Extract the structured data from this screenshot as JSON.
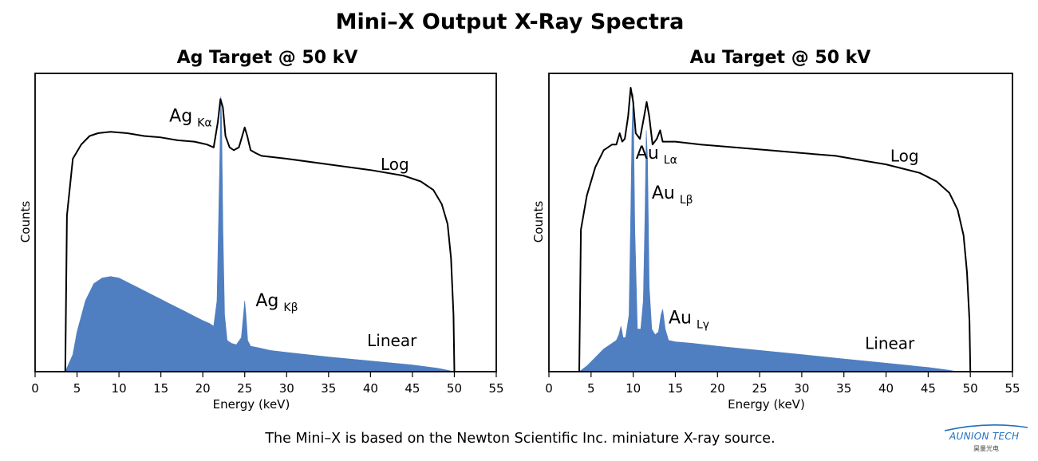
{
  "title": "Mini–X Output X-Ray Spectra",
  "caption": "The Mini–X is based on the Newton Scientific Inc. miniature X-ray source.",
  "logo": {
    "text": "AUNION TECH",
    "subtext": "昊量光电"
  },
  "colors": {
    "linear_fill": "#4f7fc1",
    "log_line": "#000000",
    "logo": "#1f6fbf"
  },
  "chart_data": [
    {
      "type": "area",
      "title": "Ag Target @ 50 kV",
      "xlabel": "Energy (keV)",
      "ylabel": "Counts",
      "xlim": [
        0,
        55
      ],
      "xticks": [
        0,
        5,
        10,
        15,
        20,
        25,
        30,
        35,
        40,
        45,
        50,
        55
      ],
      "grid": false,
      "series": [
        {
          "name": "Log",
          "style": "line",
          "x": [
            3.6,
            3.8,
            4.5,
            5.5,
            6.5,
            7.5,
            9,
            11,
            13,
            15,
            17,
            19,
            20.5,
            21.3,
            21.8,
            22.1,
            22.4,
            22.7,
            23.2,
            23.7,
            24.3,
            24.7,
            25.0,
            25.3,
            25.7,
            26.3,
            27,
            30,
            35,
            40,
            44,
            46,
            47.5,
            48.5,
            49.2,
            49.6,
            49.9,
            50.0
          ],
          "y": [
            0.0,
            0.55,
            0.75,
            0.8,
            0.83,
            0.84,
            0.845,
            0.84,
            0.83,
            0.825,
            0.815,
            0.81,
            0.8,
            0.79,
            0.88,
            0.96,
            0.93,
            0.83,
            0.79,
            0.78,
            0.79,
            0.83,
            0.86,
            0.83,
            0.78,
            0.77,
            0.76,
            0.75,
            0.73,
            0.71,
            0.69,
            0.67,
            0.64,
            0.59,
            0.52,
            0.4,
            0.2,
            0.0
          ]
        },
        {
          "name": "Linear",
          "style": "area",
          "x": [
            3.6,
            4.5,
            5.0,
            6.0,
            7.0,
            8.0,
            9.0,
            10.0,
            11.0,
            12.0,
            13.0,
            14.0,
            15.0,
            16.0,
            17.0,
            18.0,
            19.0,
            20.0,
            20.8,
            21.3,
            21.7,
            21.9,
            22.05,
            22.15,
            22.25,
            22.4,
            22.6,
            22.9,
            23.4,
            24.0,
            24.6,
            24.85,
            25.0,
            25.15,
            25.35,
            25.7,
            26.5,
            28,
            30,
            35,
            40,
            45,
            48,
            49.2,
            50.0
          ],
          "y": [
            0.0,
            0.06,
            0.14,
            0.25,
            0.31,
            0.33,
            0.335,
            0.33,
            0.315,
            0.3,
            0.285,
            0.27,
            0.255,
            0.24,
            0.225,
            0.21,
            0.195,
            0.18,
            0.17,
            0.16,
            0.25,
            0.55,
            0.78,
            0.97,
            0.88,
            0.5,
            0.2,
            0.11,
            0.1,
            0.095,
            0.12,
            0.2,
            0.25,
            0.2,
            0.11,
            0.09,
            0.085,
            0.075,
            0.068,
            0.052,
            0.038,
            0.024,
            0.012,
            0.005,
            0.0
          ]
        }
      ],
      "annotations": [
        {
          "main": "Ag",
          "sub": "Kα",
          "x": 16.0,
          "y": 0.88
        },
        {
          "main": "Ag",
          "sub": "Kβ",
          "x": 26.3,
          "y": 0.23
        },
        {
          "main": "Log",
          "sub": "",
          "x": 41.2,
          "y": 0.71
        },
        {
          "main": "Linear",
          "sub": "",
          "x": 39.6,
          "y": 0.09
        }
      ]
    },
    {
      "type": "area",
      "title": "Au Target @ 50 kV",
      "xlabel": "Energy (keV)",
      "ylabel": "Counts",
      "xlim": [
        0,
        55
      ],
      "xticks": [
        0,
        5,
        10,
        15,
        20,
        25,
        30,
        35,
        40,
        45,
        50,
        55
      ],
      "grid": false,
      "series": [
        {
          "name": "Log",
          "style": "line",
          "x": [
            3.6,
            3.8,
            4.5,
            5.5,
            6.5,
            7.5,
            8.0,
            8.4,
            8.7,
            9.0,
            9.4,
            9.7,
            10.0,
            10.3,
            10.8,
            11.3,
            11.6,
            11.9,
            12.3,
            12.8,
            13.2,
            13.5,
            14.0,
            15,
            18,
            22,
            26,
            30,
            34,
            38,
            40,
            44,
            46,
            47.5,
            48.5,
            49.2,
            49.6,
            49.9,
            50.0
          ],
          "y": [
            0.0,
            0.5,
            0.62,
            0.72,
            0.78,
            0.8,
            0.8,
            0.84,
            0.81,
            0.82,
            0.9,
            1.0,
            0.95,
            0.84,
            0.82,
            0.9,
            0.95,
            0.9,
            0.8,
            0.82,
            0.85,
            0.81,
            0.81,
            0.81,
            0.8,
            0.79,
            0.78,
            0.77,
            0.76,
            0.74,
            0.73,
            0.7,
            0.67,
            0.63,
            0.57,
            0.48,
            0.35,
            0.18,
            0.0
          ]
        },
        {
          "name": "Linear",
          "style": "area",
          "x": [
            3.6,
            4.5,
            5.5,
            6.5,
            7.5,
            8.0,
            8.3,
            8.55,
            8.8,
            9.1,
            9.5,
            9.7,
            9.85,
            10.0,
            10.2,
            10.5,
            10.9,
            11.2,
            11.4,
            11.55,
            11.7,
            11.9,
            12.2,
            12.6,
            13.0,
            13.3,
            13.5,
            13.8,
            14.2,
            15,
            17,
            20,
            25,
            30,
            35,
            40,
            45,
            47.5,
            48.5
          ],
          "y": [
            0.0,
            0.02,
            0.05,
            0.08,
            0.1,
            0.11,
            0.13,
            0.16,
            0.12,
            0.12,
            0.2,
            0.55,
            0.85,
            0.98,
            0.5,
            0.15,
            0.15,
            0.25,
            0.55,
            0.85,
            0.75,
            0.3,
            0.15,
            0.13,
            0.14,
            0.2,
            0.22,
            0.15,
            0.11,
            0.105,
            0.1,
            0.09,
            0.075,
            0.06,
            0.045,
            0.03,
            0.015,
            0.005,
            0.0
          ]
        }
      ],
      "annotations": [
        {
          "main": "Au",
          "sub": "Lα",
          "x": 10.3,
          "y": 0.75
        },
        {
          "main": "Au",
          "sub": "Lβ",
          "x": 12.2,
          "y": 0.61
        },
        {
          "main": "Au",
          "sub": "Lγ",
          "x": 14.2,
          "y": 0.17
        },
        {
          "main": "Log",
          "sub": "",
          "x": 40.5,
          "y": 0.74
        },
        {
          "main": "Linear",
          "sub": "",
          "x": 37.5,
          "y": 0.08
        }
      ]
    }
  ]
}
